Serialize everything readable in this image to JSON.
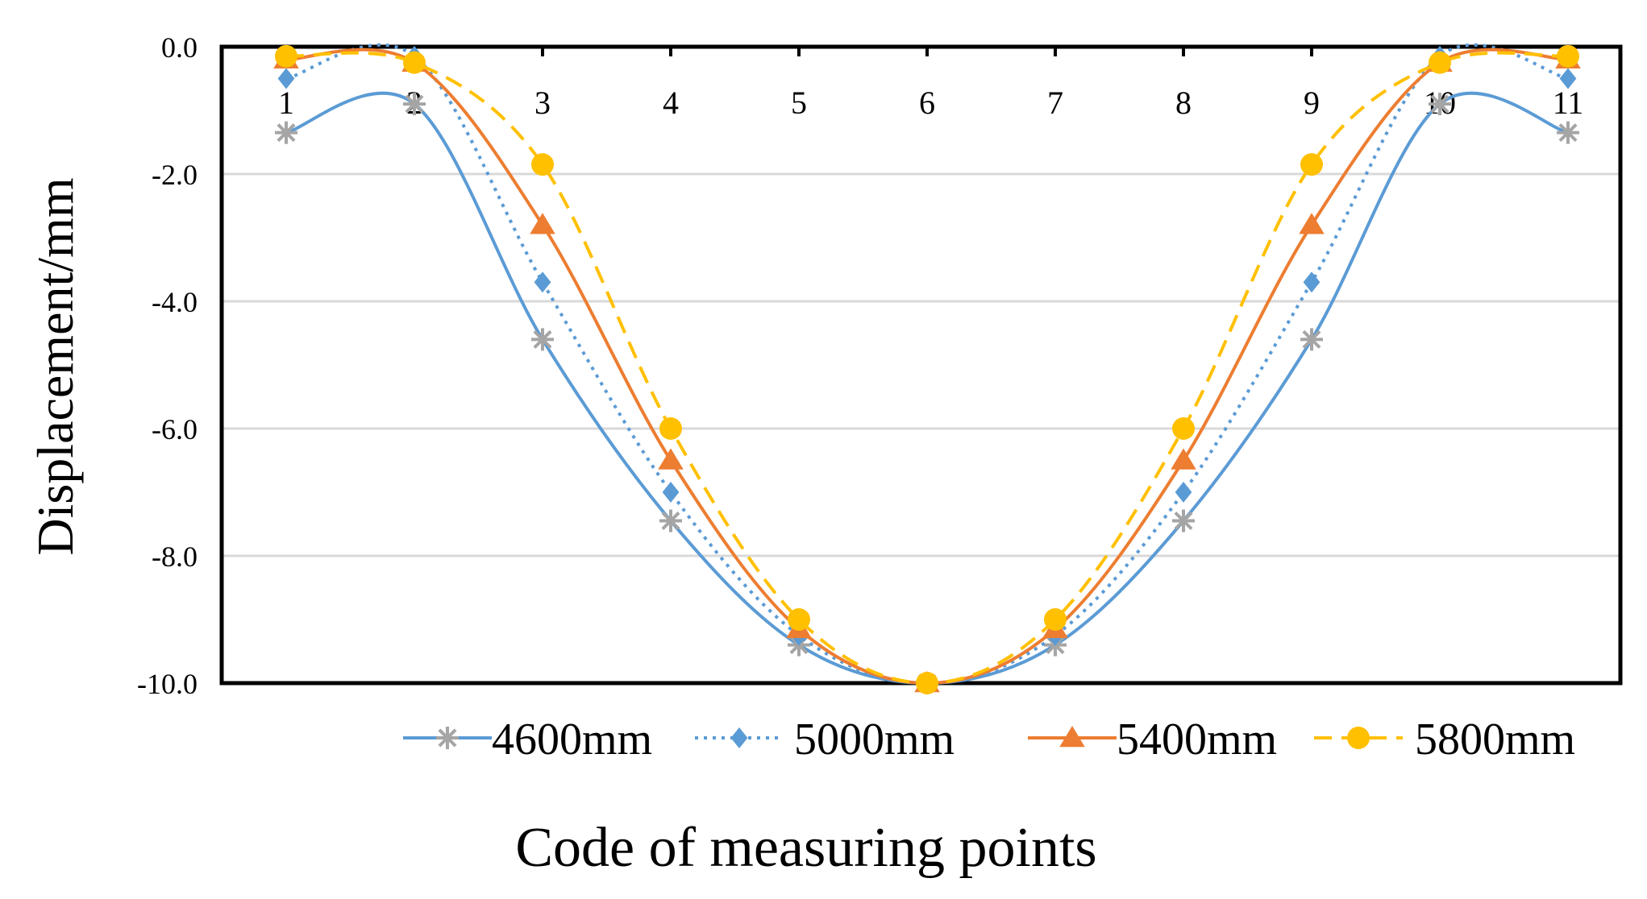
{
  "chart_data": {
    "type": "line",
    "title": "",
    "xlabel": "Code of measuring points",
    "ylabel": "Displacement/mm",
    "categories": [
      "1",
      "2",
      "3",
      "4",
      "5",
      "6",
      "7",
      "8",
      "9",
      "10",
      "11"
    ],
    "ylim": [
      -10.0,
      0.0
    ],
    "yticks": [
      "0.0",
      "-2.0",
      "-4.0",
      "-6.0",
      "-8.0",
      "-10.0"
    ],
    "ytick_values": [
      0,
      -2,
      -4,
      -6,
      -8,
      -10
    ],
    "grid": "horizontal",
    "legend_position": "bottom",
    "series": [
      {
        "name": "4600mm",
        "color": "#5B9BD5",
        "marker_color": "#A5A5A5",
        "marker": "asterisk",
        "dash": "solid",
        "values": [
          -1.35,
          -0.9,
          -4.6,
          -7.45,
          -9.4,
          -10.0,
          -9.4,
          -7.45,
          -4.6,
          -0.9,
          -1.35
        ]
      },
      {
        "name": "5000mm",
        "color": "#5B9BD5",
        "marker_color": "#5B9BD5",
        "marker": "diamond",
        "dash": "dotted",
        "values": [
          -0.5,
          -0.15,
          -3.7,
          -7.0,
          -9.25,
          -10.0,
          -9.25,
          -7.0,
          -3.7,
          -0.15,
          -0.5
        ]
      },
      {
        "name": "5400mm",
        "color": "#ED7D31",
        "marker_color": "#ED7D31",
        "marker": "triangle",
        "dash": "solid",
        "values": [
          -0.2,
          -0.25,
          -2.8,
          -6.5,
          -9.15,
          -10.0,
          -9.15,
          -6.5,
          -2.8,
          -0.25,
          -0.2
        ]
      },
      {
        "name": "5800mm",
        "color": "#FFC000",
        "marker_color": "#FFC000",
        "marker": "circle",
        "dash": "dashed",
        "values": [
          -0.15,
          -0.25,
          -1.85,
          -6.0,
          -9.0,
          -10.0,
          -9.0,
          -6.0,
          -1.85,
          -0.25,
          -0.15
        ]
      }
    ]
  }
}
